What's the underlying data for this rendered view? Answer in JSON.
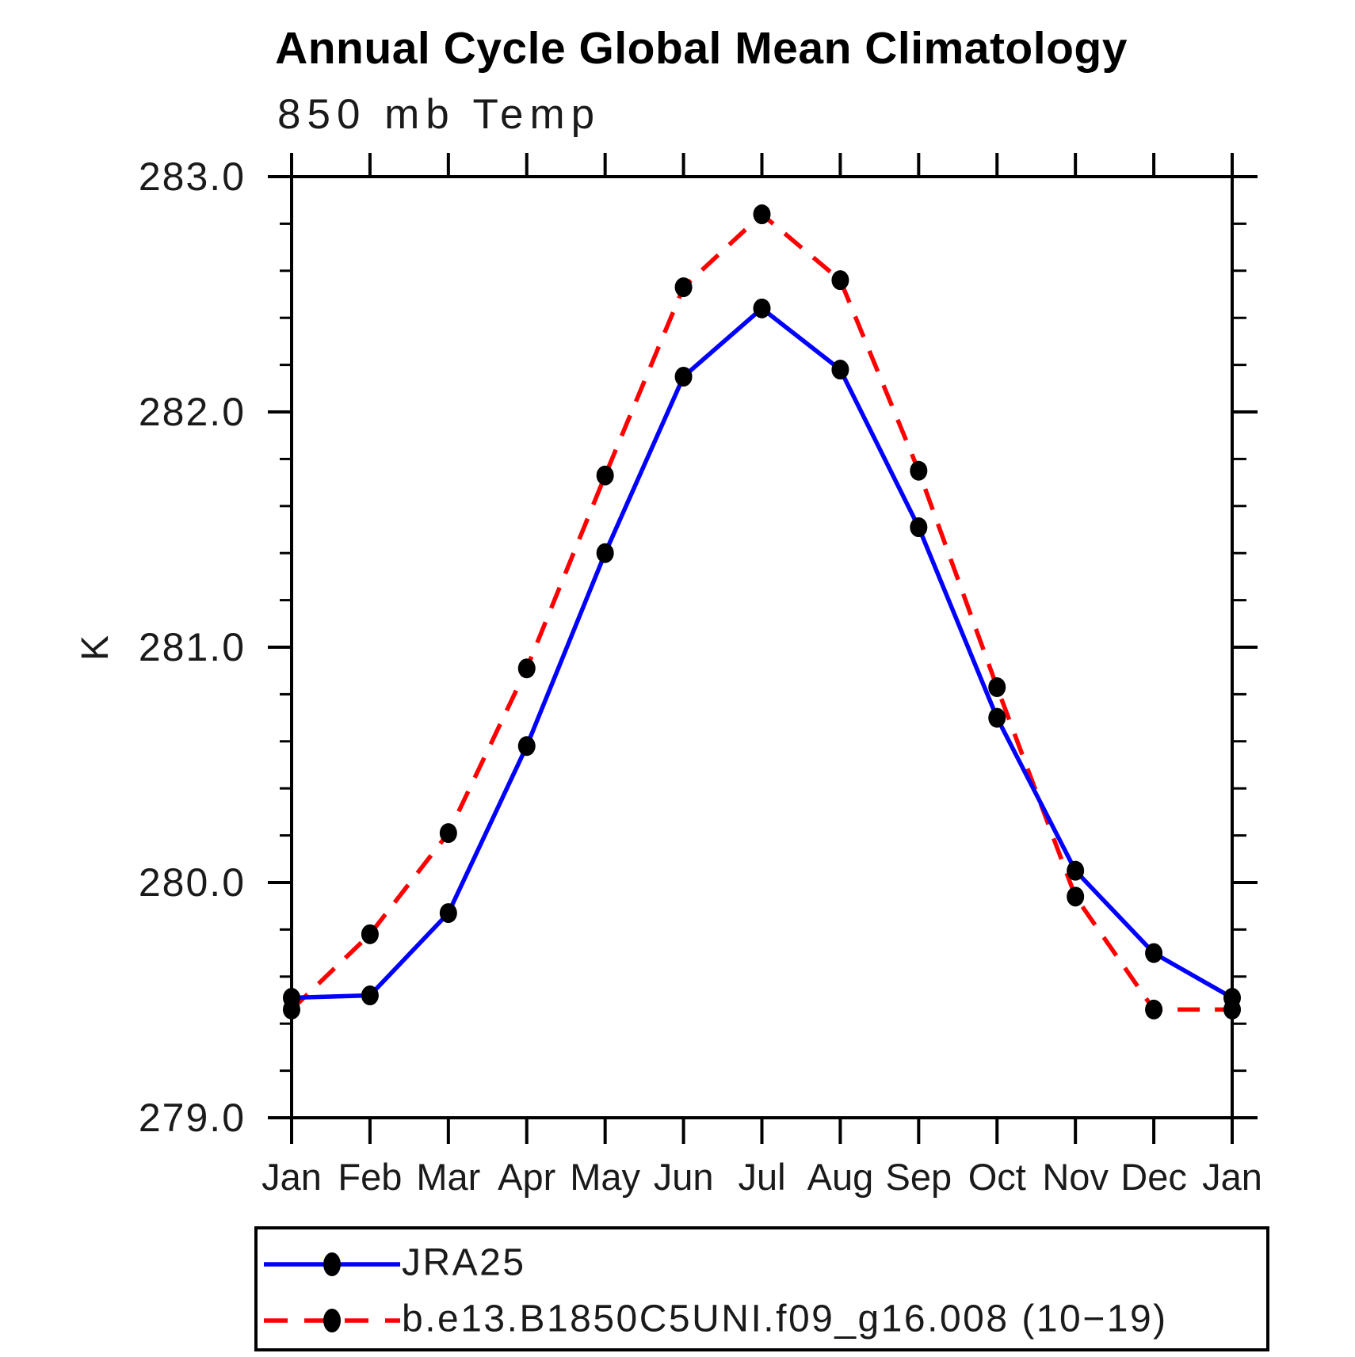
{
  "page": {
    "background": "#ffffff"
  },
  "header": {
    "title": "Annual Cycle Global Mean Climatology",
    "subtitle": "850 mb Temp"
  },
  "axes": {
    "ylabel": "K",
    "ytick_labels": [
      "283.0",
      "282.0",
      "281.0",
      "280.0",
      "279.0"
    ],
    "xtick_labels": [
      "Jan",
      "Feb",
      "Mar",
      "Apr",
      "May",
      "Jun",
      "Jul",
      "Aug",
      "Sep",
      "Oct",
      "Nov",
      "Dec",
      "Jan"
    ]
  },
  "chart_data": {
    "type": "line",
    "title": "Annual Cycle Global Mean Climatology",
    "subtitle": "850 mb Temp",
    "xlabel": "",
    "ylabel": "K",
    "ylim": [
      279.0,
      283.0
    ],
    "ytick_interval": 1.0,
    "yminor_interval": 0.2,
    "grid": false,
    "legend_position": "bottom-left-box",
    "categories": [
      "Jan",
      "Feb",
      "Mar",
      "Apr",
      "May",
      "Jun",
      "Jul",
      "Aug",
      "Sep",
      "Oct",
      "Nov",
      "Dec",
      "Jan"
    ],
    "marker": {
      "shape": "filled-circle",
      "color": "#000000"
    },
    "series": [
      {
        "name": "JRA25",
        "color": "#0000ff",
        "line_style": "solid",
        "values": [
          279.51,
          279.52,
          279.87,
          280.58,
          281.4,
          282.15,
          282.44,
          282.18,
          281.51,
          280.7,
          280.05,
          279.7,
          279.51
        ]
      },
      {
        "name": "b.e13.B1850C5UNI.f09_g16.008 (10−19)",
        "color": "#ff0000",
        "line_style": "dashed",
        "values": [
          279.46,
          279.78,
          280.21,
          280.91,
          281.73,
          282.53,
          282.84,
          282.56,
          281.75,
          280.83,
          279.94,
          279.46,
          279.46
        ]
      }
    ]
  },
  "legend": {
    "items": [
      {
        "label": "JRA25"
      },
      {
        "label": "b.e13.B1850C5UNI.f09_g16.008 (10−19)"
      }
    ]
  }
}
